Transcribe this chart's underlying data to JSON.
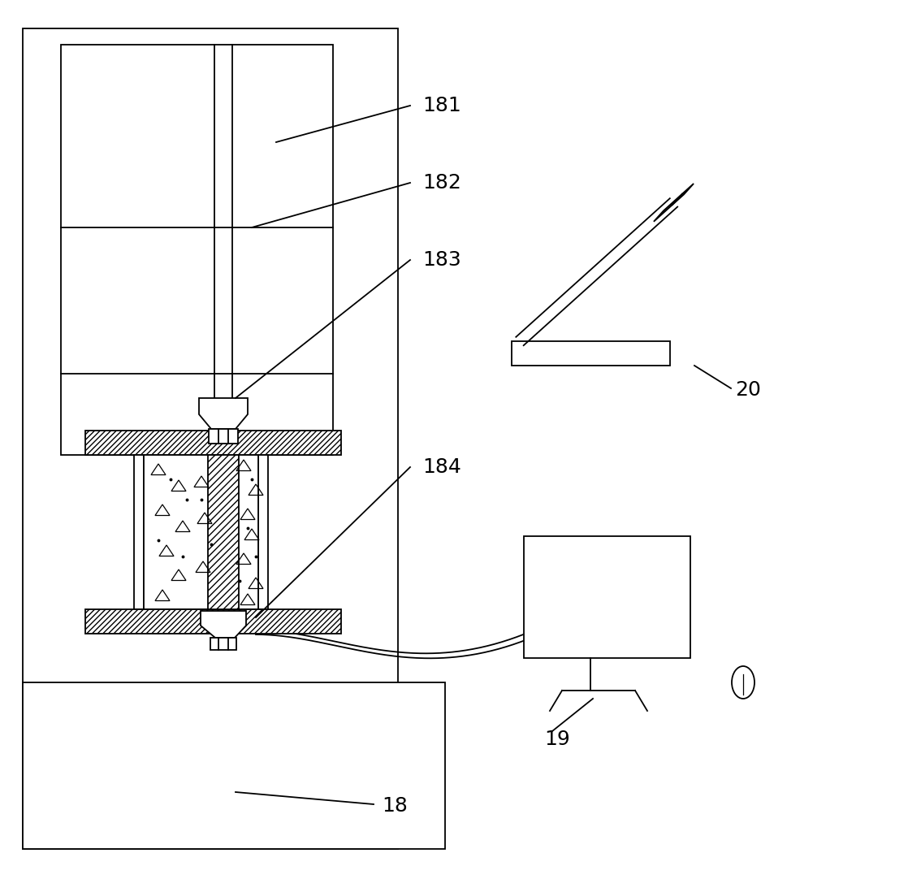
{
  "bg_color": "#ffffff",
  "line_color": "#000000",
  "lw": 1.3,
  "label_fontsize": 18
}
